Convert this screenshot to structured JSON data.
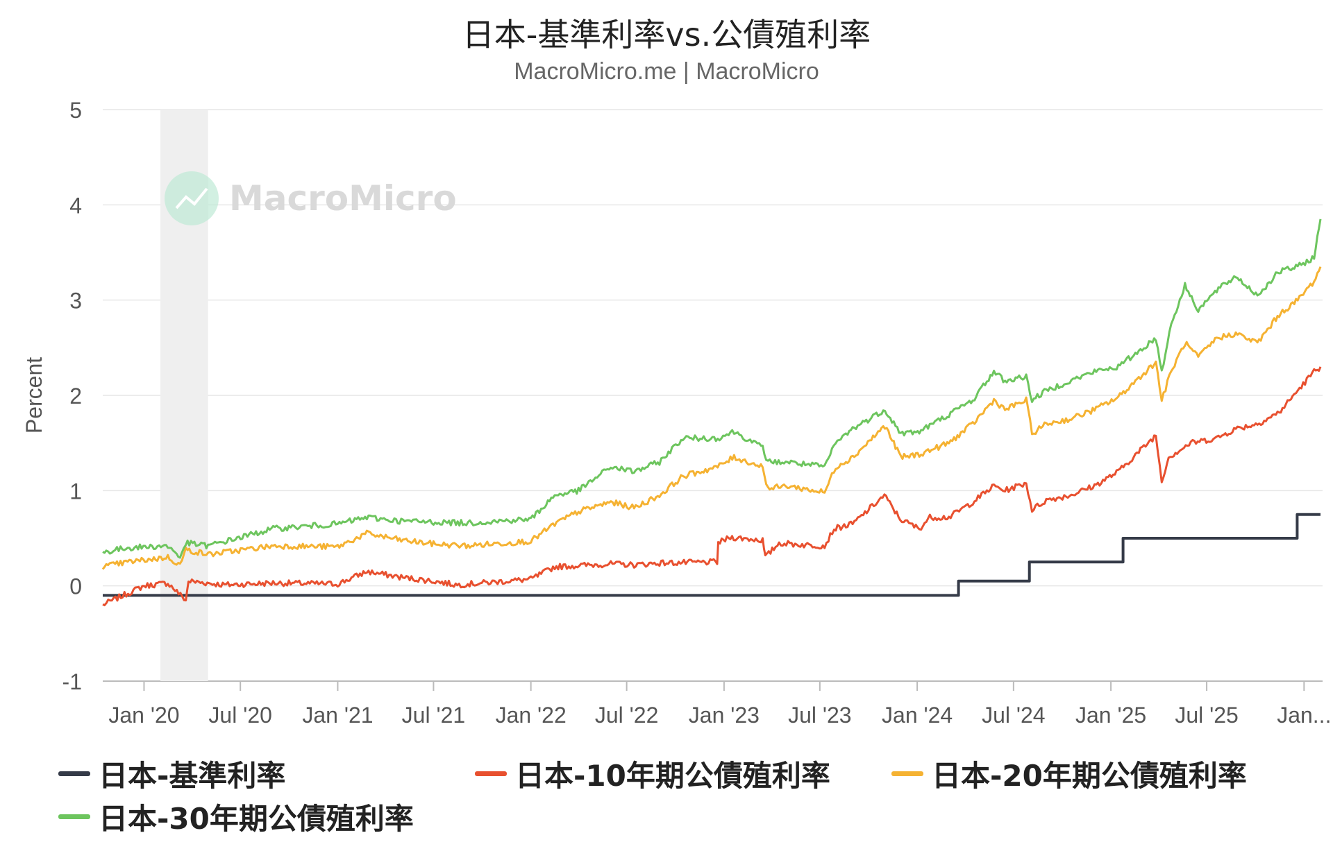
{
  "chart_data": {
    "type": "line",
    "title": "日本-基準利率vs.公債殖利率",
    "subtitle": "MacroMicro.me | MacroMicro",
    "watermark": "MacroMicro",
    "ylabel": "Percent",
    "ylim": [
      -1,
      5
    ],
    "yticks": [
      -1,
      0,
      1,
      2,
      3,
      4,
      5
    ],
    "xlim": [
      "2019-10-15",
      "2026-02-05"
    ],
    "x_ticks": [
      {
        "date": "2020-01-01",
        "label": "Jan '20"
      },
      {
        "date": "2020-07-01",
        "label": "Jul '20"
      },
      {
        "date": "2021-01-01",
        "label": "Jan '21"
      },
      {
        "date": "2021-07-01",
        "label": "Jul '21"
      },
      {
        "date": "2022-01-01",
        "label": "Jan '22"
      },
      {
        "date": "2022-07-01",
        "label": "Jul '22"
      },
      {
        "date": "2023-01-01",
        "label": "Jan '23"
      },
      {
        "date": "2023-07-01",
        "label": "Jul '23"
      },
      {
        "date": "2024-01-01",
        "label": "Jan '24"
      },
      {
        "date": "2024-07-01",
        "label": "Jul '24"
      },
      {
        "date": "2025-01-01",
        "label": "Jan '25"
      },
      {
        "date": "2025-07-01",
        "label": "Jul '25"
      },
      {
        "date": "2026-01-01",
        "label": "Jan..."
      }
    ],
    "recession_band": [
      "2020-02-01",
      "2020-05-01"
    ],
    "grid": true,
    "legend_position": "bottom",
    "series": [
      {
        "name": "日本-基準利率",
        "color": "#353b48",
        "step": true,
        "points": [
          [
            "2019-10-15",
            -0.1
          ],
          [
            "2024-03-19",
            -0.1
          ],
          [
            "2024-03-19",
            0.05
          ],
          [
            "2024-07-31",
            0.05
          ],
          [
            "2024-07-31",
            0.25
          ],
          [
            "2025-01-24",
            0.25
          ],
          [
            "2025-01-24",
            0.5
          ],
          [
            "2025-12-19",
            0.5
          ],
          [
            "2025-12-19",
            0.75
          ],
          [
            "2026-02-01",
            0.75
          ]
        ]
      },
      {
        "name": "日本-10年期公債殖利率",
        "color": "#e8502f",
        "points": [
          [
            "2019-10-15",
            -0.2
          ],
          [
            "2019-11-15",
            -0.12
          ],
          [
            "2020-01-01",
            0.0
          ],
          [
            "2020-02-15",
            0.03
          ],
          [
            "2020-03-20",
            -0.15
          ],
          [
            "2020-03-25",
            0.05
          ],
          [
            "2020-06-01",
            0.01
          ],
          [
            "2020-09-01",
            0.03
          ],
          [
            "2021-01-01",
            0.02
          ],
          [
            "2021-02-25",
            0.15
          ],
          [
            "2021-05-01",
            0.09
          ],
          [
            "2021-07-01",
            0.05
          ],
          [
            "2021-08-15",
            0.01
          ],
          [
            "2022-01-01",
            0.07
          ],
          [
            "2022-02-15",
            0.2
          ],
          [
            "2022-06-01",
            0.23
          ],
          [
            "2022-07-15",
            0.22
          ],
          [
            "2022-09-01",
            0.24
          ],
          [
            "2022-12-19",
            0.25
          ],
          [
            "2022-12-21",
            0.45
          ],
          [
            "2023-01-13",
            0.51
          ],
          [
            "2023-03-15",
            0.48
          ],
          [
            "2023-03-20",
            0.3
          ],
          [
            "2023-04-15",
            0.45
          ],
          [
            "2023-06-01",
            0.43
          ],
          [
            "2023-07-10",
            0.42
          ],
          [
            "2023-07-28",
            0.6
          ],
          [
            "2023-09-01",
            0.65
          ],
          [
            "2023-10-31",
            0.95
          ],
          [
            "2023-11-30",
            0.7
          ],
          [
            "2024-01-05",
            0.6
          ],
          [
            "2024-01-25",
            0.72
          ],
          [
            "2024-03-01",
            0.72
          ],
          [
            "2024-04-15",
            0.88
          ],
          [
            "2024-05-25",
            1.05
          ],
          [
            "2024-06-15",
            1.0
          ],
          [
            "2024-07-25",
            1.08
          ],
          [
            "2024-08-05",
            0.8
          ],
          [
            "2024-09-01",
            0.9
          ],
          [
            "2024-10-15",
            0.95
          ],
          [
            "2024-12-01",
            1.05
          ],
          [
            "2025-01-15",
            1.2
          ],
          [
            "2025-03-27",
            1.58
          ],
          [
            "2025-04-07",
            1.1
          ],
          [
            "2025-04-20",
            1.35
          ],
          [
            "2025-06-01",
            1.5
          ],
          [
            "2025-07-20",
            1.55
          ],
          [
            "2025-08-25",
            1.65
          ],
          [
            "2025-10-05",
            1.7
          ],
          [
            "2025-11-15",
            1.82
          ],
          [
            "2025-12-20",
            2.05
          ],
          [
            "2026-01-20",
            2.25
          ],
          [
            "2026-02-01",
            2.3
          ]
        ]
      },
      {
        "name": "日本-20年期公債殖利率",
        "color": "#f5b232",
        "points": [
          [
            "2019-10-15",
            0.2
          ],
          [
            "2019-12-01",
            0.25
          ],
          [
            "2020-02-15",
            0.3
          ],
          [
            "2020-03-09",
            0.22
          ],
          [
            "2020-03-20",
            0.38
          ],
          [
            "2020-05-01",
            0.33
          ],
          [
            "2020-09-01",
            0.42
          ],
          [
            "2021-01-01",
            0.41
          ],
          [
            "2021-02-25",
            0.55
          ],
          [
            "2021-05-01",
            0.48
          ],
          [
            "2021-07-01",
            0.44
          ],
          [
            "2021-09-01",
            0.42
          ],
          [
            "2022-01-01",
            0.47
          ],
          [
            "2022-02-15",
            0.65
          ],
          [
            "2022-04-01",
            0.78
          ],
          [
            "2022-06-01",
            0.88
          ],
          [
            "2022-07-15",
            0.82
          ],
          [
            "2022-09-01",
            0.95
          ],
          [
            "2022-10-15",
            1.15
          ],
          [
            "2022-12-20",
            1.25
          ],
          [
            "2023-01-20",
            1.35
          ],
          [
            "2023-03-15",
            1.25
          ],
          [
            "2023-03-25",
            1.02
          ],
          [
            "2023-05-01",
            1.05
          ],
          [
            "2023-07-10",
            0.98
          ],
          [
            "2023-07-31",
            1.25
          ],
          [
            "2023-09-01",
            1.35
          ],
          [
            "2023-11-01",
            1.68
          ],
          [
            "2023-12-01",
            1.35
          ],
          [
            "2024-01-05",
            1.38
          ],
          [
            "2024-03-01",
            1.5
          ],
          [
            "2024-04-15",
            1.7
          ],
          [
            "2024-05-25",
            1.95
          ],
          [
            "2024-06-15",
            1.85
          ],
          [
            "2024-07-25",
            1.95
          ],
          [
            "2024-08-05",
            1.6
          ],
          [
            "2024-09-01",
            1.7
          ],
          [
            "2024-10-15",
            1.75
          ],
          [
            "2024-12-01",
            1.85
          ],
          [
            "2025-01-15",
            1.98
          ],
          [
            "2025-03-27",
            2.35
          ],
          [
            "2025-04-07",
            1.95
          ],
          [
            "2025-04-25",
            2.25
          ],
          [
            "2025-05-21",
            2.55
          ],
          [
            "2025-06-15",
            2.4
          ],
          [
            "2025-07-20",
            2.6
          ],
          [
            "2025-08-25",
            2.65
          ],
          [
            "2025-10-05",
            2.55
          ],
          [
            "2025-11-15",
            2.85
          ],
          [
            "2025-12-20",
            3.0
          ],
          [
            "2026-01-20",
            3.2
          ],
          [
            "2026-02-01",
            3.35
          ]
        ]
      },
      {
        "name": "日本-30年期公債殖利率",
        "color": "#6dc55e",
        "points": [
          [
            "2019-10-15",
            0.35
          ],
          [
            "2019-12-01",
            0.4
          ],
          [
            "2020-02-15",
            0.42
          ],
          [
            "2020-03-09",
            0.3
          ],
          [
            "2020-03-20",
            0.45
          ],
          [
            "2020-05-01",
            0.42
          ],
          [
            "2020-09-01",
            0.6
          ],
          [
            "2021-01-01",
            0.65
          ],
          [
            "2021-02-25",
            0.72
          ],
          [
            "2021-05-01",
            0.68
          ],
          [
            "2021-07-01",
            0.67
          ],
          [
            "2021-09-01",
            0.66
          ],
          [
            "2022-01-01",
            0.7
          ],
          [
            "2022-02-15",
            0.95
          ],
          [
            "2022-04-01",
            1.0
          ],
          [
            "2022-06-01",
            1.25
          ],
          [
            "2022-07-15",
            1.2
          ],
          [
            "2022-09-01",
            1.3
          ],
          [
            "2022-10-15",
            1.55
          ],
          [
            "2022-12-20",
            1.55
          ],
          [
            "2023-01-20",
            1.62
          ],
          [
            "2023-03-15",
            1.45
          ],
          [
            "2023-03-25",
            1.3
          ],
          [
            "2023-05-01",
            1.3
          ],
          [
            "2023-07-10",
            1.25
          ],
          [
            "2023-07-31",
            1.5
          ],
          [
            "2023-09-01",
            1.65
          ],
          [
            "2023-11-01",
            1.85
          ],
          [
            "2023-12-01",
            1.6
          ],
          [
            "2024-01-05",
            1.62
          ],
          [
            "2024-03-01",
            1.8
          ],
          [
            "2024-04-15",
            1.95
          ],
          [
            "2024-05-25",
            2.25
          ],
          [
            "2024-06-15",
            2.15
          ],
          [
            "2024-07-25",
            2.2
          ],
          [
            "2024-08-05",
            1.95
          ],
          [
            "2024-09-01",
            2.05
          ],
          [
            "2024-10-15",
            2.15
          ],
          [
            "2024-12-01",
            2.25
          ],
          [
            "2025-01-15",
            2.3
          ],
          [
            "2025-03-27",
            2.6
          ],
          [
            "2025-04-07",
            2.25
          ],
          [
            "2025-04-25",
            2.75
          ],
          [
            "2025-05-21",
            3.15
          ],
          [
            "2025-06-15",
            2.9
          ],
          [
            "2025-07-20",
            3.1
          ],
          [
            "2025-08-25",
            3.25
          ],
          [
            "2025-10-05",
            3.05
          ],
          [
            "2025-11-15",
            3.3
          ],
          [
            "2025-12-20",
            3.35
          ],
          [
            "2026-01-20",
            3.45
          ],
          [
            "2026-02-01",
            3.85
          ]
        ]
      }
    ]
  }
}
